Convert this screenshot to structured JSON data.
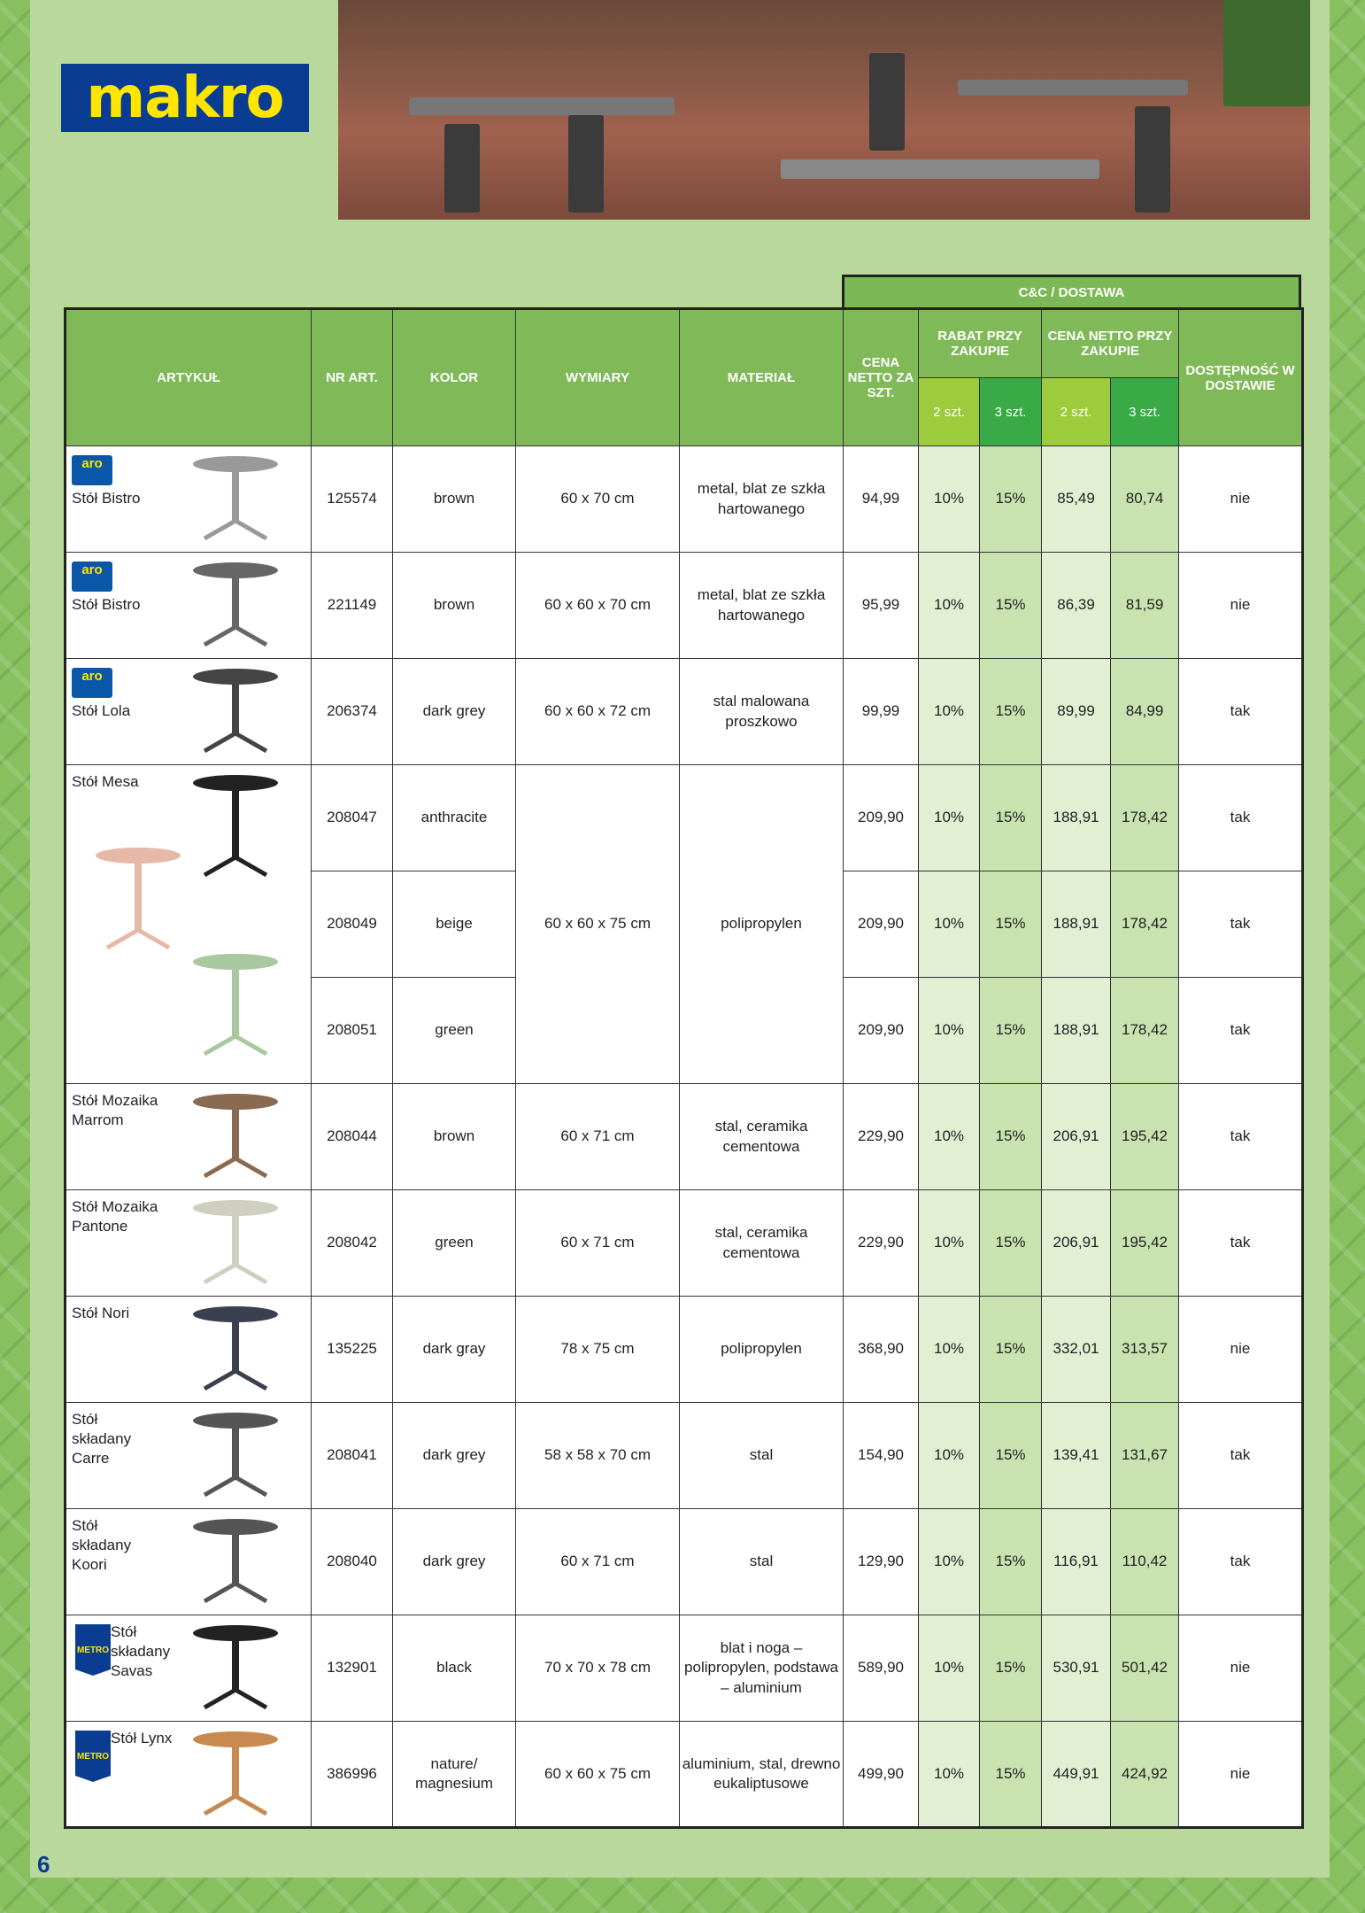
{
  "brand": "makro",
  "page_number": "6",
  "header": {
    "group": "C&C / DOSTAWA",
    "artykul": "ARTYKUŁ",
    "nr": "NR ART.",
    "kolor": "KOLOR",
    "wymiary": "WYMIARY",
    "material": "MATERIAŁ",
    "cena": "CENA NETTO ZA SZT.",
    "rabat": "RABAT PRZY ZAKUPIE",
    "cena_zakup": "CENA NETTO PRZY ZAKUPIE",
    "dost": "DOSTĘPNOŚĆ W DOSTAWIE",
    "q2": "2 szt.",
    "q3": "3 szt."
  },
  "rows": [
    {
      "brand": "aro",
      "name": "Stół Bistro",
      "nr": "125574",
      "kolor": "brown",
      "wymiary": "60 x 70 cm",
      "material": "metal, blat ze szkła hartowanego",
      "cena": "94,99",
      "r2": "10%",
      "r3": "15%",
      "c2": "85,49",
      "c3": "80,74",
      "dost": "nie",
      "img": "#999999"
    },
    {
      "brand": "aro",
      "name": "Stół Bistro",
      "nr": "221149",
      "kolor": "brown",
      "wymiary": "60 x 60 x 70 cm",
      "material": "metal, blat ze szkła hartowanego",
      "cena": "95,99",
      "r2": "10%",
      "r3": "15%",
      "c2": "86,39",
      "c3": "81,59",
      "dost": "nie",
      "img": "#666666"
    },
    {
      "brand": "aro",
      "name": "Stół Lola",
      "nr": "206374",
      "kolor": "dark grey",
      "wymiary": "60 x 60 x 72 cm",
      "material": "stal malowana proszkowo",
      "cena": "99,99",
      "r2": "10%",
      "r3": "15%",
      "c2": "89,99",
      "c3": "84,99",
      "dost": "tak",
      "img": "#444444"
    },
    {
      "brand": "",
      "name": "Stół Mesa",
      "nr": "208047",
      "kolor": "anthracite",
      "wymiary": "60 x 60 x 75 cm",
      "material": "polipropylen",
      "cena": "209,90",
      "r2": "10%",
      "r3": "15%",
      "c2": "188,91",
      "c3": "178,42",
      "dost": "tak",
      "img": "#222222"
    },
    {
      "nr": "208049",
      "kolor": "beige",
      "cena": "209,90",
      "r2": "10%",
      "r3": "15%",
      "c2": "188,91",
      "c3": "178,42",
      "dost": "tak",
      "img": "#e6b8a8"
    },
    {
      "nr": "208051",
      "kolor": "green",
      "cena": "209,90",
      "r2": "10%",
      "r3": "15%",
      "c2": "188,91",
      "c3": "178,42",
      "dost": "tak",
      "img": "#a8c8a0"
    },
    {
      "brand": "",
      "name": "Stół Mozaika Marrom",
      "nr": "208044",
      "kolor": "brown",
      "wymiary": "60 x 71 cm",
      "material": "stal, ceramika cementowa",
      "cena": "229,90",
      "r2": "10%",
      "r3": "15%",
      "c2": "206,91",
      "c3": "195,42",
      "dost": "tak",
      "img": "#8a6a50"
    },
    {
      "brand": "",
      "name": "Stół Mozaika Pantone",
      "nr": "208042",
      "kolor": "green",
      "wymiary": "60 x 71 cm",
      "material": "stal, ceramika cementowa",
      "cena": "229,90",
      "r2": "10%",
      "r3": "15%",
      "c2": "206,91",
      "c3": "195,42",
      "dost": "tak",
      "img": "#cfcfc0"
    },
    {
      "brand": "",
      "name": "Stół Nori",
      "nr": "135225",
      "kolor": "dark gray",
      "wymiary": "78 x 75 cm",
      "material": "polipropylen",
      "cena": "368,90",
      "r2": "10%",
      "r3": "15%",
      "c2": "332,01",
      "c3": "313,57",
      "dost": "nie",
      "img": "#3a4050"
    },
    {
      "brand": "",
      "name": "Stół składany Carre",
      "nr": "208041",
      "kolor": "dark grey",
      "wymiary": "58 x 58 x 70 cm",
      "material": "stal",
      "cena": "154,90",
      "r2": "10%",
      "r3": "15%",
      "c2": "139,41",
      "c3": "131,67",
      "dost": "tak",
      "img": "#555555"
    },
    {
      "brand": "",
      "name": "Stół składany Koori",
      "nr": "208040",
      "kolor": "dark grey",
      "wymiary": "60 x 71 cm",
      "material": "stal",
      "cena": "129,90",
      "r2": "10%",
      "r3": "15%",
      "c2": "116,91",
      "c3": "110,42",
      "dost": "tak",
      "img": "#555555"
    },
    {
      "brand": "METRO",
      "name": "Stół składany Savas",
      "nr": "132901",
      "kolor": "black",
      "wymiary": "70 x 70 x 78 cm",
      "material": "blat i noga – polipropylen, podstawa – aluminium",
      "cena": "589,90",
      "r2": "10%",
      "r3": "15%",
      "c2": "530,91",
      "c3": "501,42",
      "dost": "nie",
      "img": "#222222"
    },
    {
      "brand": "METRO",
      "name": "Stół Lynx",
      "nr": "386996",
      "kolor": "nature/ magnesium",
      "wymiary": "60 x 60 x 75 cm",
      "material": "aluminium, stal, drewno eukaliptusowe",
      "cena": "499,90",
      "r2": "10%",
      "r3": "15%",
      "c2": "449,91",
      "c3": "424,92",
      "dost": "nie",
      "img": "#c88a50"
    }
  ]
}
